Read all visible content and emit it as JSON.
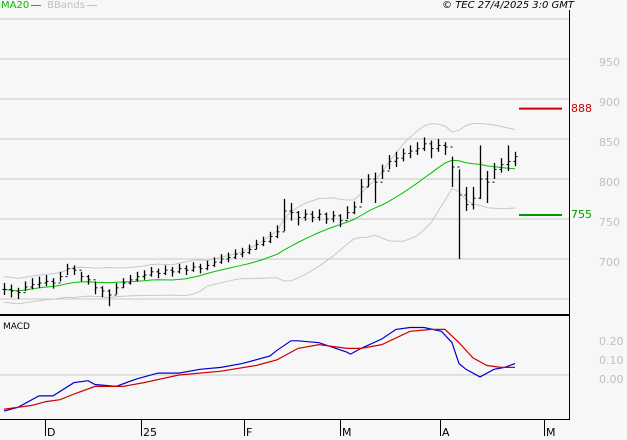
{
  "header": {
    "legend": [
      {
        "label": "MA20",
        "color": "#00c000"
      },
      {
        "label": "BBands",
        "color": "#c0c0c0"
      }
    ],
    "copyright": "© TEC 27/4/2025 3:0 GMT"
  },
  "chart_data": [
    {
      "type": "ohlc",
      "panel": "price",
      "y_ticks": [
        "950",
        "900",
        "850",
        "800",
        "750",
        "700"
      ],
      "ylim": [
        640,
        990
      ],
      "x_ticks": [
        "D",
        "25",
        "F",
        "M",
        "A",
        "M"
      ],
      "grid": true,
      "overlays": [
        "MA20",
        "BBands"
      ],
      "levels": [
        {
          "label": "888",
          "value": 888,
          "color": "#cc0000"
        },
        {
          "label": "755",
          "value": 755,
          "color": "#009900"
        }
      ],
      "bars_hlc": [
        [
          670,
          655,
          662
        ],
        [
          668,
          652,
          660
        ],
        [
          664,
          650,
          658
        ],
        [
          672,
          660,
          665
        ],
        [
          676,
          662,
          668
        ],
        [
          678,
          664,
          670
        ],
        [
          680,
          666,
          672
        ],
        [
          676,
          663,
          670
        ],
        [
          684,
          672,
          678
        ],
        [
          694,
          680,
          688
        ],
        [
          692,
          680,
          686
        ],
        [
          684,
          672,
          678
        ],
        [
          680,
          668,
          674
        ],
        [
          672,
          656,
          664
        ],
        [
          666,
          652,
          660
        ],
        [
          662,
          641,
          655
        ],
        [
          670,
          656,
          664
        ],
        [
          676,
          664,
          670
        ],
        [
          680,
          668,
          674
        ],
        [
          684,
          672,
          678
        ],
        [
          686,
          674,
          680
        ],
        [
          690,
          678,
          684
        ],
        [
          688,
          676,
          682
        ],
        [
          692,
          680,
          686
        ],
        [
          690,
          678,
          684
        ],
        [
          694,
          682,
          688
        ],
        [
          692,
          680,
          686
        ],
        [
          696,
          684,
          690
        ],
        [
          694,
          682,
          688
        ],
        [
          698,
          686,
          692
        ],
        [
          702,
          690,
          696
        ],
        [
          706,
          694,
          700
        ],
        [
          708,
          696,
          702
        ],
        [
          712,
          700,
          706
        ],
        [
          714,
          702,
          708
        ],
        [
          718,
          706,
          712
        ],
        [
          724,
          712,
          718
        ],
        [
          728,
          716,
          722
        ],
        [
          734,
          720,
          728
        ],
        [
          742,
          726,
          734
        ],
        [
          775,
          735,
          760
        ],
        [
          770,
          748,
          758
        ],
        [
          760,
          742,
          752
        ],
        [
          762,
          748,
          756
        ],
        [
          760,
          746,
          752
        ],
        [
          762,
          748,
          756
        ],
        [
          758,
          744,
          750
        ],
        [
          760,
          746,
          754
        ],
        [
          756,
          740,
          748
        ],
        [
          766,
          750,
          758
        ],
        [
          772,
          756,
          765
        ],
        [
          800,
          770,
          790
        ],
        [
          806,
          790,
          800
        ],
        [
          808,
          770,
          796
        ],
        [
          818,
          800,
          810
        ],
        [
          830,
          812,
          822
        ],
        [
          834,
          815,
          826
        ],
        [
          838,
          822,
          832
        ],
        [
          842,
          826,
          835
        ],
        [
          846,
          830,
          838
        ],
        [
          852,
          835,
          844
        ],
        [
          848,
          826,
          838
        ],
        [
          850,
          834,
          842
        ],
        [
          846,
          830,
          840
        ],
        [
          828,
          790,
          815
        ],
        [
          812,
          700,
          780
        ],
        [
          790,
          760,
          768
        ],
        [
          790,
          762,
          776
        ],
        [
          842,
          775,
          800
        ],
        [
          810,
          770,
          796
        ],
        [
          820,
          800,
          812
        ],
        [
          826,
          808,
          818
        ],
        [
          842,
          810,
          822
        ],
        [
          834,
          816,
          828
        ]
      ]
    },
    {
      "type": "line",
      "panel": "MACD",
      "title": "MACD",
      "y_ticks": [
        "0.20",
        "0.10",
        "0.00"
      ],
      "x_ticks": [
        "D",
        "25",
        "F",
        "M",
        "A",
        "M"
      ],
      "series": [
        {
          "color": "#0000cc",
          "points": [
            [
              0,
              -0.19
            ],
            [
              2,
              -0.17
            ],
            [
              5,
              -0.11
            ],
            [
              7,
              -0.11
            ],
            [
              10,
              -0.04
            ],
            [
              12,
              -0.03
            ],
            [
              13,
              -0.05
            ],
            [
              16,
              -0.06
            ],
            [
              19,
              -0.02
            ],
            [
              22,
              0.01
            ],
            [
              25,
              0.01
            ],
            [
              28,
              0.03
            ],
            [
              31,
              0.04
            ],
            [
              34,
              0.06
            ],
            [
              38,
              0.1
            ],
            [
              39,
              0.13
            ],
            [
              41,
              0.18
            ],
            [
              42,
              0.18
            ],
            [
              45,
              0.17
            ],
            [
              49,
              0.12
            ],
            [
              49.5,
              0.11
            ],
            [
              51,
              0.14
            ],
            [
              54,
              0.19
            ],
            [
              56,
              0.24
            ],
            [
              58,
              0.25
            ],
            [
              60,
              0.25
            ],
            [
              62.5,
              0.23
            ],
            [
              64,
              0.17
            ],
            [
              65,
              0.06
            ],
            [
              66,
              0.03
            ],
            [
              68,
              -0.01
            ],
            [
              70,
              0.03
            ],
            [
              71.5,
              0.04
            ],
            [
              73,
              0.06
            ]
          ]
        },
        {
          "color": "#cc0000",
          "points": [
            [
              0,
              -0.18
            ],
            [
              4,
              -0.16
            ],
            [
              6,
              -0.14
            ],
            [
              8,
              -0.13
            ],
            [
              10,
              -0.1
            ],
            [
              13,
              -0.06
            ],
            [
              17,
              -0.06
            ],
            [
              20,
              -0.04
            ],
            [
              25,
              0.0
            ],
            [
              31,
              0.02
            ],
            [
              36,
              0.05
            ],
            [
              39,
              0.08
            ],
            [
              42,
              0.14
            ],
            [
              45,
              0.16
            ],
            [
              49,
              0.14
            ],
            [
              51,
              0.14
            ],
            [
              54,
              0.16
            ],
            [
              58,
              0.23
            ],
            [
              61,
              0.24
            ],
            [
              63,
              0.24
            ],
            [
              65,
              0.17
            ],
            [
              67,
              0.09
            ],
            [
              69,
              0.05
            ],
            [
              71,
              0.04
            ],
            [
              73,
              0.04
            ]
          ]
        }
      ]
    }
  ]
}
